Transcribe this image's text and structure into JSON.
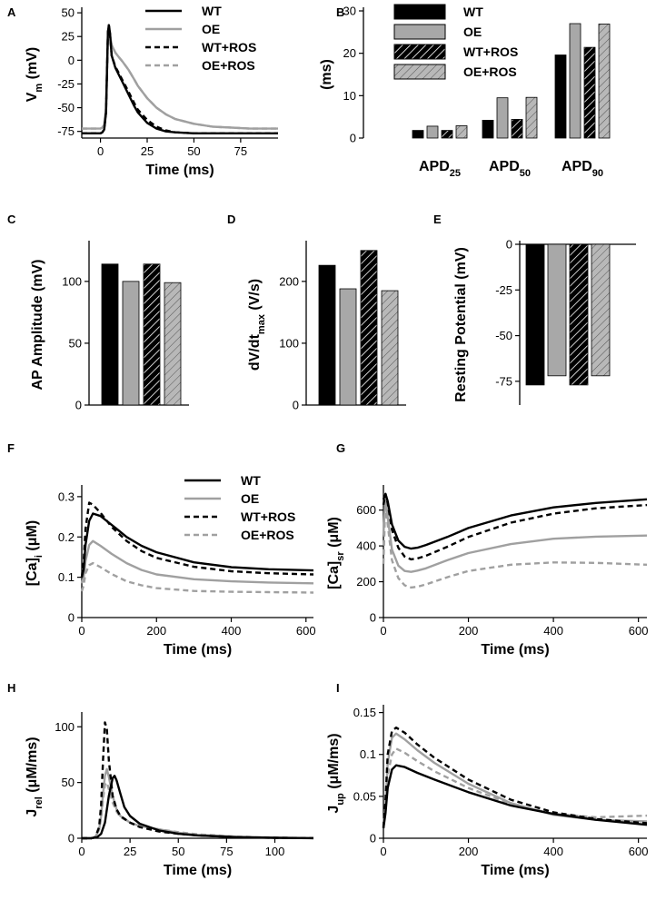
{
  "styles": {
    "WT": {
      "color": "#000000",
      "dash": "",
      "fill": "#000000",
      "hatch": false
    },
    "OE": {
      "color": "#a0a0a0",
      "dash": "",
      "fill": "#a8a8a8",
      "hatch": false
    },
    "WT+ROS": {
      "color": "#000000",
      "dash": "6,4",
      "fill": "#000000",
      "hatch": true
    },
    "OE+ROS": {
      "color": "#a0a0a0",
      "dash": "6,4",
      "fill": "#a8a8a8",
      "hatch": true
    }
  },
  "chart_data": [
    {
      "id": "A",
      "panel_label": "A",
      "type": "line",
      "xlabel": "Time (ms)",
      "ylabel": "V",
      "ylabel_sub": "m",
      "ylabel_tail": " (mV)",
      "xlim": [
        -10,
        95
      ],
      "ylim": [
        -82,
        52
      ],
      "xticks": [
        0,
        25,
        50,
        75
      ],
      "yticks": [
        50,
        25,
        0,
        -25,
        -50,
        -75
      ],
      "ytick_labels": [
        "50",
        "25",
        "0",
        "-25",
        "-50",
        "-75"
      ],
      "legend": [
        "WT",
        "OE",
        "WT+ROS",
        "OE+ROS"
      ],
      "series": [
        {
          "name": "WT",
          "x": [
            -10,
            0,
            1,
            2,
            3,
            4,
            4.5,
            5,
            6,
            8,
            10,
            12,
            15,
            18,
            20,
            25,
            30,
            35,
            40,
            50,
            60,
            70,
            80,
            95
          ],
          "y": [
            -77,
            -77,
            -76,
            -73,
            -55,
            30,
            37,
            30,
            5,
            -8,
            -16,
            -24,
            -36,
            -48,
            -55,
            -66,
            -72,
            -75,
            -76,
            -77,
            -77,
            -77,
            -77,
            -77
          ]
        },
        {
          "name": "OE",
          "x": [
            -10,
            0,
            1,
            2,
            3,
            4,
            4.5,
            5,
            6,
            8,
            10,
            12,
            15,
            18,
            20,
            25,
            30,
            35,
            40,
            50,
            60,
            70,
            80,
            95
          ],
          "y": [
            -72,
            -72,
            -71,
            -68,
            -50,
            28,
            35,
            28,
            16,
            8,
            3,
            -2,
            -10,
            -20,
            -27,
            -40,
            -50,
            -57,
            -62,
            -67,
            -70,
            -71,
            -72,
            -72
          ]
        },
        {
          "name": "WT+ROS",
          "x": [
            -10,
            0,
            1,
            2,
            3,
            4,
            4.5,
            5,
            6,
            8,
            10,
            12,
            15,
            18,
            20,
            25,
            30,
            35,
            40,
            50,
            60,
            70,
            80,
            95
          ],
          "y": [
            -77,
            -77,
            -76,
            -73,
            -55,
            30,
            37,
            30,
            5,
            -7,
            -14,
            -22,
            -33,
            -45,
            -52,
            -63,
            -70,
            -74,
            -76,
            -77,
            -77,
            -77,
            -77,
            -77
          ]
        },
        {
          "name": "OE+ROS",
          "x": [
            -10,
            0,
            1,
            2,
            3,
            4,
            4.5,
            5,
            6,
            8,
            10,
            12,
            15,
            18,
            20,
            25,
            30,
            35,
            40,
            50,
            60,
            70,
            80,
            95
          ],
          "y": [
            -72,
            -72,
            -71,
            -68,
            -50,
            28,
            35,
            28,
            16,
            8,
            3,
            -2,
            -10,
            -20,
            -27,
            -40,
            -50,
            -57,
            -62,
            -67,
            -70,
            -71,
            -72,
            -72
          ]
        }
      ]
    },
    {
      "id": "B",
      "panel_label": "B",
      "type": "bar",
      "ylabel": "(ms)",
      "ylim": [
        0,
        30
      ],
      "yticks": [
        0,
        10,
        20,
        30
      ],
      "categories": [
        "APD25",
        "APD50",
        "APD90"
      ],
      "category_main": [
        "APD",
        "APD",
        "APD"
      ],
      "category_sub": [
        "25",
        "50",
        "90"
      ],
      "legend": [
        "WT",
        "OE",
        "WT+ROS",
        "OE+ROS"
      ],
      "series": [
        {
          "name": "WT",
          "values": [
            1.8,
            4.2,
            19.6
          ]
        },
        {
          "name": "OE",
          "values": [
            2.8,
            9.5,
            27.0
          ]
        },
        {
          "name": "WT+ROS",
          "values": [
            1.8,
            4.4,
            21.4
          ]
        },
        {
          "name": "OE+ROS",
          "values": [
            2.9,
            9.6,
            26.9
          ]
        }
      ]
    },
    {
      "id": "C",
      "panel_label": "C",
      "type": "bar",
      "ylabel": "AP Amplitude (mV)",
      "ylim": [
        0,
        130
      ],
      "yticks": [
        0,
        50,
        100
      ],
      "categories": [
        "WT",
        "OE",
        "WT+ROS",
        "OE+ROS"
      ],
      "values": [
        114,
        100,
        114,
        99
      ]
    },
    {
      "id": "D",
      "panel_label": "D",
      "type": "bar",
      "ylabel": "dV/dt",
      "ylabel_sub": "max",
      "ylabel_tail": " (V/s)",
      "ylim": [
        0,
        260
      ],
      "yticks": [
        0,
        100,
        200
      ],
      "categories": [
        "WT",
        "OE",
        "WT+ROS",
        "OE+ROS"
      ],
      "values": [
        226,
        188,
        250,
        185
      ]
    },
    {
      "id": "E",
      "panel_label": "E",
      "type": "bar",
      "ylabel": "Resting Potential (mV)",
      "ylim": [
        -88,
        0
      ],
      "yticks": [
        0,
        -25,
        -50,
        -75
      ],
      "categories": [
        "WT",
        "OE",
        "WT+ROS",
        "OE+ROS"
      ],
      "values": [
        -77,
        -72,
        -77,
        -72
      ]
    },
    {
      "id": "F",
      "panel_label": "F",
      "type": "line",
      "xlabel": "Time (ms)",
      "ylabel": "[Ca]",
      "ylabel_sub": "i",
      "ylabel_tail": " (μM)",
      "xlim": [
        0,
        620
      ],
      "ylim": [
        0,
        0.32
      ],
      "xticks": [
        0,
        200,
        400,
        600
      ],
      "yticks": [
        0,
        0.1,
        0.2,
        0.3
      ],
      "ytick_labels": [
        "0",
        "0.1",
        "0.2",
        "0.3"
      ],
      "legend": [
        "WT",
        "OE",
        "WT+ROS",
        "OE+ROS"
      ],
      "series": [
        {
          "name": "WT",
          "x": [
            0,
            5,
            10,
            20,
            30,
            50,
            80,
            120,
            160,
            200,
            300,
            400,
            500,
            620
          ],
          "y": [
            0.1,
            0.12,
            0.18,
            0.24,
            0.258,
            0.252,
            0.23,
            0.2,
            0.178,
            0.162,
            0.137,
            0.125,
            0.12,
            0.117
          ]
        },
        {
          "name": "OE",
          "x": [
            0,
            5,
            10,
            20,
            30,
            50,
            80,
            120,
            160,
            200,
            300,
            400,
            500,
            620
          ],
          "y": [
            0.085,
            0.1,
            0.14,
            0.18,
            0.19,
            0.178,
            0.158,
            0.135,
            0.118,
            0.107,
            0.095,
            0.09,
            0.087,
            0.085
          ]
        },
        {
          "name": "WT+ROS",
          "x": [
            0,
            5,
            10,
            20,
            30,
            50,
            80,
            120,
            160,
            200,
            300,
            400,
            500,
            620
          ],
          "y": [
            0.1,
            0.14,
            0.22,
            0.285,
            0.28,
            0.26,
            0.225,
            0.19,
            0.165,
            0.148,
            0.126,
            0.115,
            0.11,
            0.107
          ]
        },
        {
          "name": "OE+ROS",
          "x": [
            0,
            5,
            10,
            20,
            30,
            50,
            80,
            120,
            160,
            200,
            300,
            400,
            500,
            620
          ],
          "y": [
            0.065,
            0.08,
            0.11,
            0.13,
            0.135,
            0.125,
            0.108,
            0.09,
            0.08,
            0.073,
            0.066,
            0.064,
            0.063,
            0.062
          ]
        }
      ]
    },
    {
      "id": "G",
      "panel_label": "G",
      "type": "line",
      "xlabel": "Time (ms)",
      "ylabel": "[Ca]",
      "ylabel_sub": "sr",
      "ylabel_tail": " (μM)",
      "xlim": [
        0,
        620
      ],
      "ylim": [
        0,
        720
      ],
      "xticks": [
        0,
        200,
        400,
        600
      ],
      "yticks": [
        0,
        200,
        400,
        600
      ],
      "ytick_labels": [
        "0",
        "200",
        "400",
        "600"
      ],
      "series": [
        {
          "name": "WT",
          "x": [
            0,
            5,
            10,
            20,
            35,
            50,
            65,
            80,
            100,
            150,
            200,
            300,
            400,
            500,
            620
          ],
          "y": [
            660,
            690,
            650,
            520,
            430,
            395,
            385,
            390,
            405,
            450,
            500,
            570,
            615,
            640,
            660
          ]
        },
        {
          "name": "OE",
          "x": [
            0,
            5,
            10,
            20,
            35,
            50,
            65,
            80,
            100,
            150,
            200,
            300,
            400,
            500,
            620
          ],
          "y": [
            460,
            680,
            560,
            380,
            290,
            260,
            255,
            262,
            275,
            320,
            360,
            410,
            440,
            452,
            458
          ]
        },
        {
          "name": "WT+ROS",
          "x": [
            0,
            5,
            10,
            20,
            35,
            50,
            65,
            80,
            100,
            150,
            200,
            300,
            400,
            500,
            620
          ],
          "y": [
            630,
            690,
            640,
            490,
            390,
            340,
            325,
            330,
            345,
            395,
            450,
            530,
            580,
            610,
            628
          ]
        },
        {
          "name": "OE+ROS",
          "x": [
            0,
            5,
            10,
            20,
            35,
            50,
            65,
            80,
            100,
            150,
            200,
            300,
            400,
            500,
            620
          ],
          "y": [
            300,
            670,
            520,
            320,
            220,
            180,
            168,
            172,
            185,
            225,
            260,
            295,
            308,
            305,
            295
          ]
        }
      ]
    },
    {
      "id": "H",
      "panel_label": "H",
      "type": "line",
      "xlabel": "Time (ms)",
      "ylabel": "J",
      "ylabel_sub": "rel",
      "ylabel_tail": " (μM/ms)",
      "xlim": [
        0,
        120
      ],
      "ylim": [
        0,
        110
      ],
      "xticks": [
        0,
        25,
        50,
        75,
        100
      ],
      "yticks": [
        0,
        50,
        100
      ],
      "ytick_labels": [
        "0",
        "50",
        "100"
      ],
      "series": [
        {
          "name": "WT",
          "x": [
            0,
            5,
            8,
            10,
            12,
            14,
            16,
            17,
            18,
            20,
            22,
            25,
            30,
            40,
            50,
            60,
            80,
            100,
            120
          ],
          "y": [
            0,
            0,
            1,
            4,
            14,
            38,
            54,
            56,
            52,
            40,
            28,
            20,
            13,
            7,
            4,
            2.5,
            1,
            0.4,
            0.1
          ]
        },
        {
          "name": "OE",
          "x": [
            0,
            5,
            7,
            9,
            10,
            11,
            12,
            13,
            14,
            16,
            18,
            20,
            25,
            30,
            40,
            50,
            60,
            80,
            100,
            120
          ],
          "y": [
            0,
            0,
            1,
            8,
            20,
            40,
            56,
            62,
            55,
            38,
            26,
            20,
            14,
            11,
            8,
            5,
            3,
            1.5,
            0.5,
            0.2
          ]
        },
        {
          "name": "WT+ROS",
          "x": [
            0,
            5,
            7,
            9,
            10,
            11,
            12,
            13,
            14,
            16,
            18,
            20,
            25,
            30,
            40,
            50,
            60,
            80,
            100,
            120
          ],
          "y": [
            0,
            0,
            1,
            10,
            30,
            70,
            104,
            98,
            70,
            38,
            26,
            20,
            14,
            10,
            6,
            4,
            2.5,
            1,
            0.4,
            0.1
          ]
        },
        {
          "name": "OE+ROS",
          "x": [
            0,
            5,
            7,
            9,
            10,
            11,
            12,
            13,
            14,
            16,
            18,
            20,
            25,
            30,
            40,
            50,
            60,
            80,
            100,
            120
          ],
          "y": [
            0,
            0,
            1,
            8,
            18,
            35,
            48,
            50,
            44,
            32,
            24,
            19,
            14,
            11,
            8,
            5.5,
            3.5,
            1.5,
            0.5,
            0.2
          ]
        }
      ]
    },
    {
      "id": "I",
      "panel_label": "I",
      "type": "line",
      "xlabel": "Time (ms)",
      "ylabel": "J",
      "ylabel_sub": "up",
      "ylabel_tail": " (μM/ms)",
      "xlim": [
        0,
        620
      ],
      "ylim": [
        0,
        0.155
      ],
      "xticks": [
        0,
        200,
        400,
        600
      ],
      "yticks": [
        0,
        0.05,
        0.1,
        0.15
      ],
      "ytick_labels": [
        "0",
        "0.05",
        "0.1",
        "0.15"
      ],
      "series": [
        {
          "name": "WT",
          "x": [
            0,
            5,
            10,
            20,
            30,
            50,
            80,
            120,
            200,
            300,
            400,
            500,
            620
          ],
          "y": [
            0.012,
            0.03,
            0.06,
            0.082,
            0.087,
            0.085,
            0.078,
            0.07,
            0.055,
            0.039,
            0.029,
            0.022,
            0.016
          ]
        },
        {
          "name": "OE",
          "x": [
            0,
            5,
            10,
            20,
            30,
            50,
            80,
            120,
            200,
            300,
            400,
            500,
            620
          ],
          "y": [
            0.015,
            0.04,
            0.09,
            0.12,
            0.125,
            0.118,
            0.105,
            0.09,
            0.065,
            0.042,
            0.028,
            0.022,
            0.02
          ]
        },
        {
          "name": "WT+ROS",
          "x": [
            0,
            5,
            10,
            20,
            30,
            50,
            80,
            120,
            200,
            300,
            400,
            500,
            620
          ],
          "y": [
            0.013,
            0.045,
            0.1,
            0.128,
            0.132,
            0.126,
            0.112,
            0.096,
            0.07,
            0.046,
            0.031,
            0.023,
            0.018
          ]
        },
        {
          "name": "OE+ROS",
          "x": [
            0,
            5,
            10,
            20,
            30,
            50,
            80,
            120,
            200,
            300,
            400,
            500,
            620
          ],
          "y": [
            0.012,
            0.035,
            0.075,
            0.1,
            0.107,
            0.102,
            0.092,
            0.08,
            0.06,
            0.041,
            0.029,
            0.025,
            0.027
          ]
        }
      ]
    }
  ]
}
